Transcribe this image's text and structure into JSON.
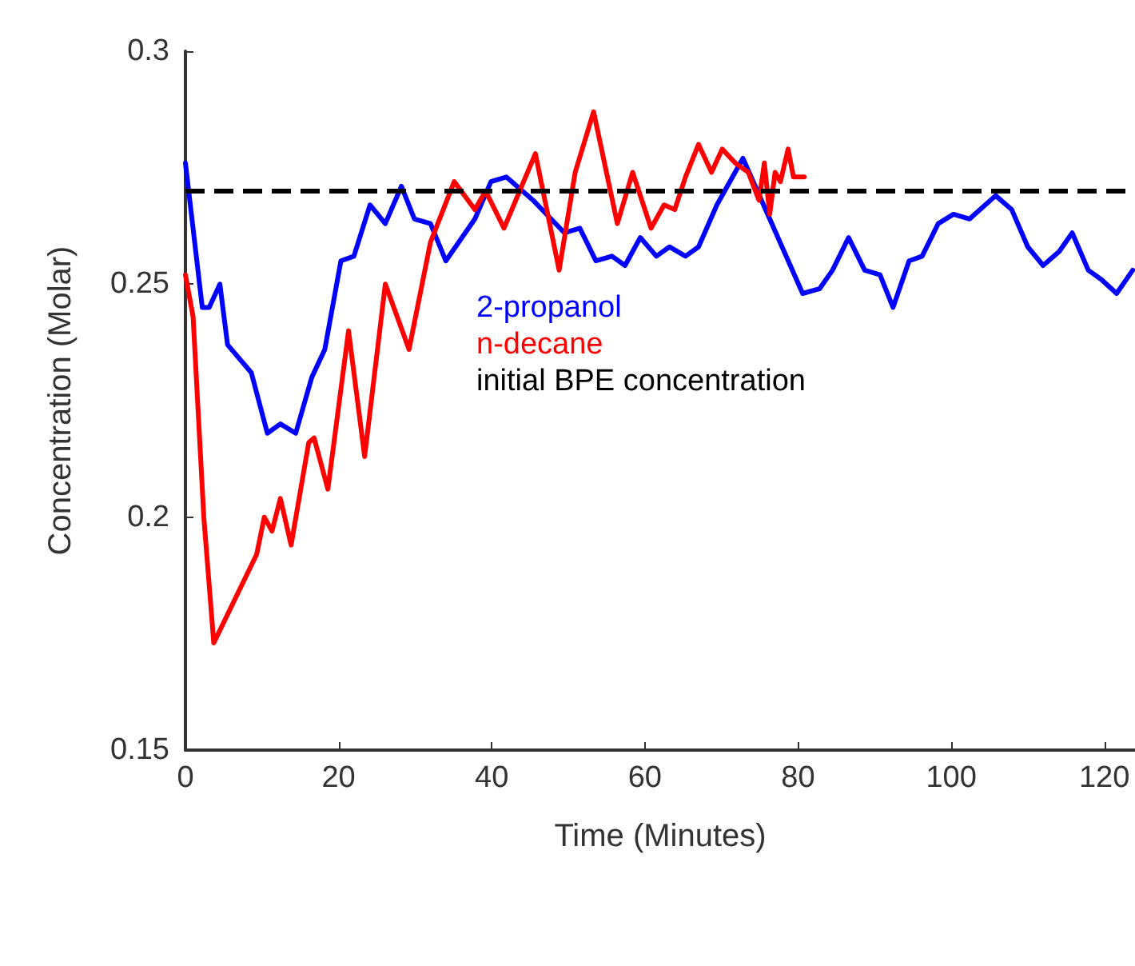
{
  "chart_data": {
    "type": "line",
    "xlabel": "Time (Minutes)",
    "ylabel": "Concentration (Molar)",
    "xlim": [
      0,
      124
    ],
    "ylim": [
      0.15,
      0.3
    ],
    "xticks": [
      0,
      20,
      40,
      60,
      80,
      100,
      120
    ],
    "yticks": [
      0.15,
      0.2,
      0.25,
      0.3
    ],
    "grid": false,
    "legend": "left",
    "marker": "none",
    "line_style": "solid",
    "series": [
      {
        "name": "2-propanol",
        "color": "#0000ff",
        "x": [
          0,
          2.2,
          3.1,
          4.5,
          5.5,
          8.6,
          10.7,
          12.4,
          14.4,
          16.5,
          18.2,
          20.3,
          22,
          24.1,
          26.1,
          28.2,
          29.9,
          32,
          34,
          37.8,
          39.9,
          41.9,
          45.4,
          49.5,
          51.5,
          53.6,
          55.7,
          57.4,
          59.4,
          61.5,
          63.2,
          65.3,
          67,
          69.4,
          72.8,
          76.3,
          80.6,
          82.8,
          84.5,
          86.6,
          88.7,
          90.7,
          92.4,
          94.5,
          96.2,
          98.3,
          100.3,
          102.4,
          105.8,
          107.9,
          110,
          112,
          114.1,
          115.8,
          117.9,
          119.6,
          121.6,
          123.7
        ],
        "values": [
          0.276,
          0.245,
          0.245,
          0.25,
          0.237,
          0.231,
          0.218,
          0.22,
          0.218,
          0.23,
          0.236,
          0.255,
          0.256,
          0.267,
          0.263,
          0.271,
          0.264,
          0.263,
          0.255,
          0.264,
          0.272,
          0.273,
          0.268,
          0.261,
          0.262,
          0.255,
          0.256,
          0.254,
          0.26,
          0.256,
          0.258,
          0.256,
          0.258,
          0.267,
          0.277,
          0.264,
          0.248,
          0.249,
          0.253,
          0.26,
          0.253,
          0.252,
          0.245,
          0.255,
          0.256,
          0.263,
          0.265,
          0.264,
          0.269,
          0.266,
          0.258,
          0.254,
          0.257,
          0.261,
          0.253,
          0.251,
          0.248,
          0.253
        ]
      },
      {
        "name": "n-decane",
        "color": "#ff0000",
        "x": [
          0,
          1,
          2.4,
          3.7,
          9.3,
          10.3,
          11.3,
          12.4,
          13.8,
          16.1,
          16.8,
          18.6,
          21.3,
          23.4,
          26.1,
          29.2,
          32,
          35.1,
          37.8,
          39.2,
          41.6,
          45.7,
          48.8,
          50.9,
          53.3,
          56.4,
          58.4,
          60.8,
          62.5,
          63.9,
          65.3,
          67,
          68.7,
          70.1,
          71.8,
          73.5,
          74.9,
          75.6,
          76.3,
          77,
          77.7,
          78.7,
          79.4,
          80.8
        ],
        "values": [
          0.252,
          0.243,
          0.2,
          0.173,
          0.192,
          0.2,
          0.197,
          0.204,
          0.194,
          0.216,
          0.217,
          0.206,
          0.24,
          0.213,
          0.25,
          0.236,
          0.259,
          0.272,
          0.266,
          0.27,
          0.262,
          0.278,
          0.253,
          0.274,
          0.287,
          0.263,
          0.274,
          0.262,
          0.267,
          0.266,
          0.273,
          0.28,
          0.274,
          0.279,
          0.276,
          0.274,
          0.268,
          0.276,
          0.265,
          0.274,
          0.272,
          0.279,
          0.273,
          0.273
        ]
      }
    ],
    "ref_lines": [
      {
        "axis": "y",
        "value": 0.27,
        "label": "initial BPE concentration",
        "color": "#000000",
        "line_style": "dashed"
      }
    ]
  }
}
